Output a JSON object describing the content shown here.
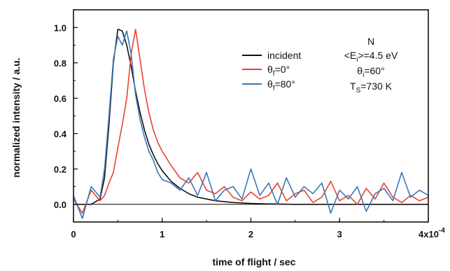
{
  "chart_data": {
    "type": "line",
    "title": "",
    "xlabel": "time of flight / sec",
    "ylabel": "normalized intensity / a.u.",
    "xlim": [
      0,
      0.0004
    ],
    "ylim": [
      -0.1,
      1.1
    ],
    "x_ticks": [
      0,
      0.0001,
      0.0002,
      0.0003,
      0.0004
    ],
    "x_tick_labels": [
      "0",
      "1",
      "2",
      "3",
      "4x10"
    ],
    "x_exponent_label": "-4",
    "y_ticks": [
      0.0,
      0.2,
      0.4,
      0.6,
      0.8,
      1.0
    ],
    "y_tick_labels": [
      "0.0",
      "0.2",
      "0.4",
      "0.6",
      "0.8",
      "1.0"
    ],
    "grid": false,
    "legend_position": "top-right",
    "zero_line": true,
    "series": [
      {
        "name": "incident",
        "name_parts": [
          "incident"
        ],
        "color": "#111111",
        "x": [
          0.0,
          1e-05,
          2e-05,
          3e-05,
          3.5e-05,
          4e-05,
          4.5e-05,
          5e-05,
          5.5e-05,
          6e-05,
          6.5e-05,
          7e-05,
          7.5e-05,
          8e-05,
          8.5e-05,
          9e-05,
          9.5e-05,
          0.0001,
          0.00011,
          0.00012,
          0.00013,
          0.00014,
          0.00015,
          0.00016,
          0.00018,
          0.0002,
          0.00022,
          0.00025,
          0.0003,
          0.0004
        ],
        "y": [
          0.0,
          0.0,
          0.0,
          0.03,
          0.15,
          0.45,
          0.8,
          0.99,
          0.98,
          0.9,
          0.78,
          0.64,
          0.52,
          0.42,
          0.34,
          0.28,
          0.23,
          0.19,
          0.13,
          0.09,
          0.06,
          0.04,
          0.03,
          0.02,
          0.01,
          0.005,
          0.002,
          0.0,
          0.0,
          0.0
        ]
      },
      {
        "name": "θf=0°",
        "name_parts": [
          "θ",
          "f",
          "=0°"
        ],
        "color": "#e8432e",
        "x": [
          0.0,
          1e-05,
          2e-05,
          3e-05,
          3.5e-05,
          4e-05,
          4.5e-05,
          5e-05,
          5.5e-05,
          6e-05,
          6.5e-05,
          7e-05,
          7.5e-05,
          8e-05,
          8.5e-05,
          9e-05,
          9.5e-05,
          0.0001,
          0.00011,
          0.00012,
          0.00013,
          0.00014,
          0.00015,
          0.00016,
          0.00017,
          0.00018,
          0.00019,
          0.0002,
          0.00021,
          0.00022,
          0.00023,
          0.00024,
          0.00025,
          0.00026,
          0.00027,
          0.00028,
          0.00029,
          0.0003,
          0.00031,
          0.00032,
          0.00033,
          0.00034,
          0.00035,
          0.00036,
          0.00037,
          0.00038,
          0.00039,
          0.0004
        ],
        "y": [
          0.03,
          -0.05,
          0.08,
          0.02,
          0.05,
          0.12,
          0.18,
          0.32,
          0.45,
          0.6,
          0.85,
          0.99,
          0.82,
          0.65,
          0.52,
          0.42,
          0.35,
          0.3,
          0.22,
          0.15,
          0.12,
          0.18,
          0.08,
          0.06,
          0.1,
          0.04,
          0.02,
          0.07,
          0.03,
          0.05,
          0.12,
          0.02,
          0.06,
          0.08,
          0.01,
          0.04,
          0.13,
          0.02,
          0.05,
          0.0,
          0.09,
          0.03,
          0.12,
          0.04,
          0.01,
          0.05,
          0.02,
          0.04
        ]
      },
      {
        "name": "θf=80°",
        "name_parts": [
          "θ",
          "f",
          "=80°"
        ],
        "color": "#3a78b8",
        "x": [
          0.0,
          1e-05,
          2e-05,
          3e-05,
          3.5e-05,
          4e-05,
          4.5e-05,
          5e-05,
          5.5e-05,
          6e-05,
          6.5e-05,
          7e-05,
          7.5e-05,
          8e-05,
          8.5e-05,
          9e-05,
          9.5e-05,
          0.0001,
          0.00011,
          0.00012,
          0.00013,
          0.00014,
          0.00015,
          0.00016,
          0.00017,
          0.00018,
          0.00019,
          0.0002,
          0.00021,
          0.00022,
          0.00023,
          0.00024,
          0.00025,
          0.00026,
          0.00027,
          0.00028,
          0.00029,
          0.0003,
          0.00031,
          0.00032,
          0.00033,
          0.00034,
          0.00035,
          0.00036,
          0.00037,
          0.00038,
          0.00039,
          0.0004
        ],
        "y": [
          0.05,
          -0.08,
          0.1,
          0.04,
          0.2,
          0.5,
          0.82,
          0.95,
          0.9,
          0.98,
          0.85,
          0.62,
          0.48,
          0.38,
          0.3,
          0.25,
          0.18,
          0.14,
          0.12,
          0.08,
          0.15,
          0.05,
          0.18,
          0.02,
          0.08,
          0.1,
          0.03,
          0.2,
          0.05,
          0.12,
          0.0,
          0.15,
          0.04,
          0.1,
          0.06,
          0.12,
          -0.05,
          0.08,
          0.03,
          0.1,
          -0.04,
          0.06,
          0.09,
          0.02,
          0.18,
          0.04,
          0.08,
          0.05
        ]
      }
    ],
    "annotations": [
      {
        "parts": [
          "N"
        ]
      },
      {
        "parts": [
          "<E",
          "i",
          ">=4.5 eV"
        ]
      },
      {
        "parts": [
          "θ",
          "i",
          "=60°"
        ]
      },
      {
        "parts": [
          "T",
          "S",
          "=730 K"
        ]
      }
    ]
  }
}
